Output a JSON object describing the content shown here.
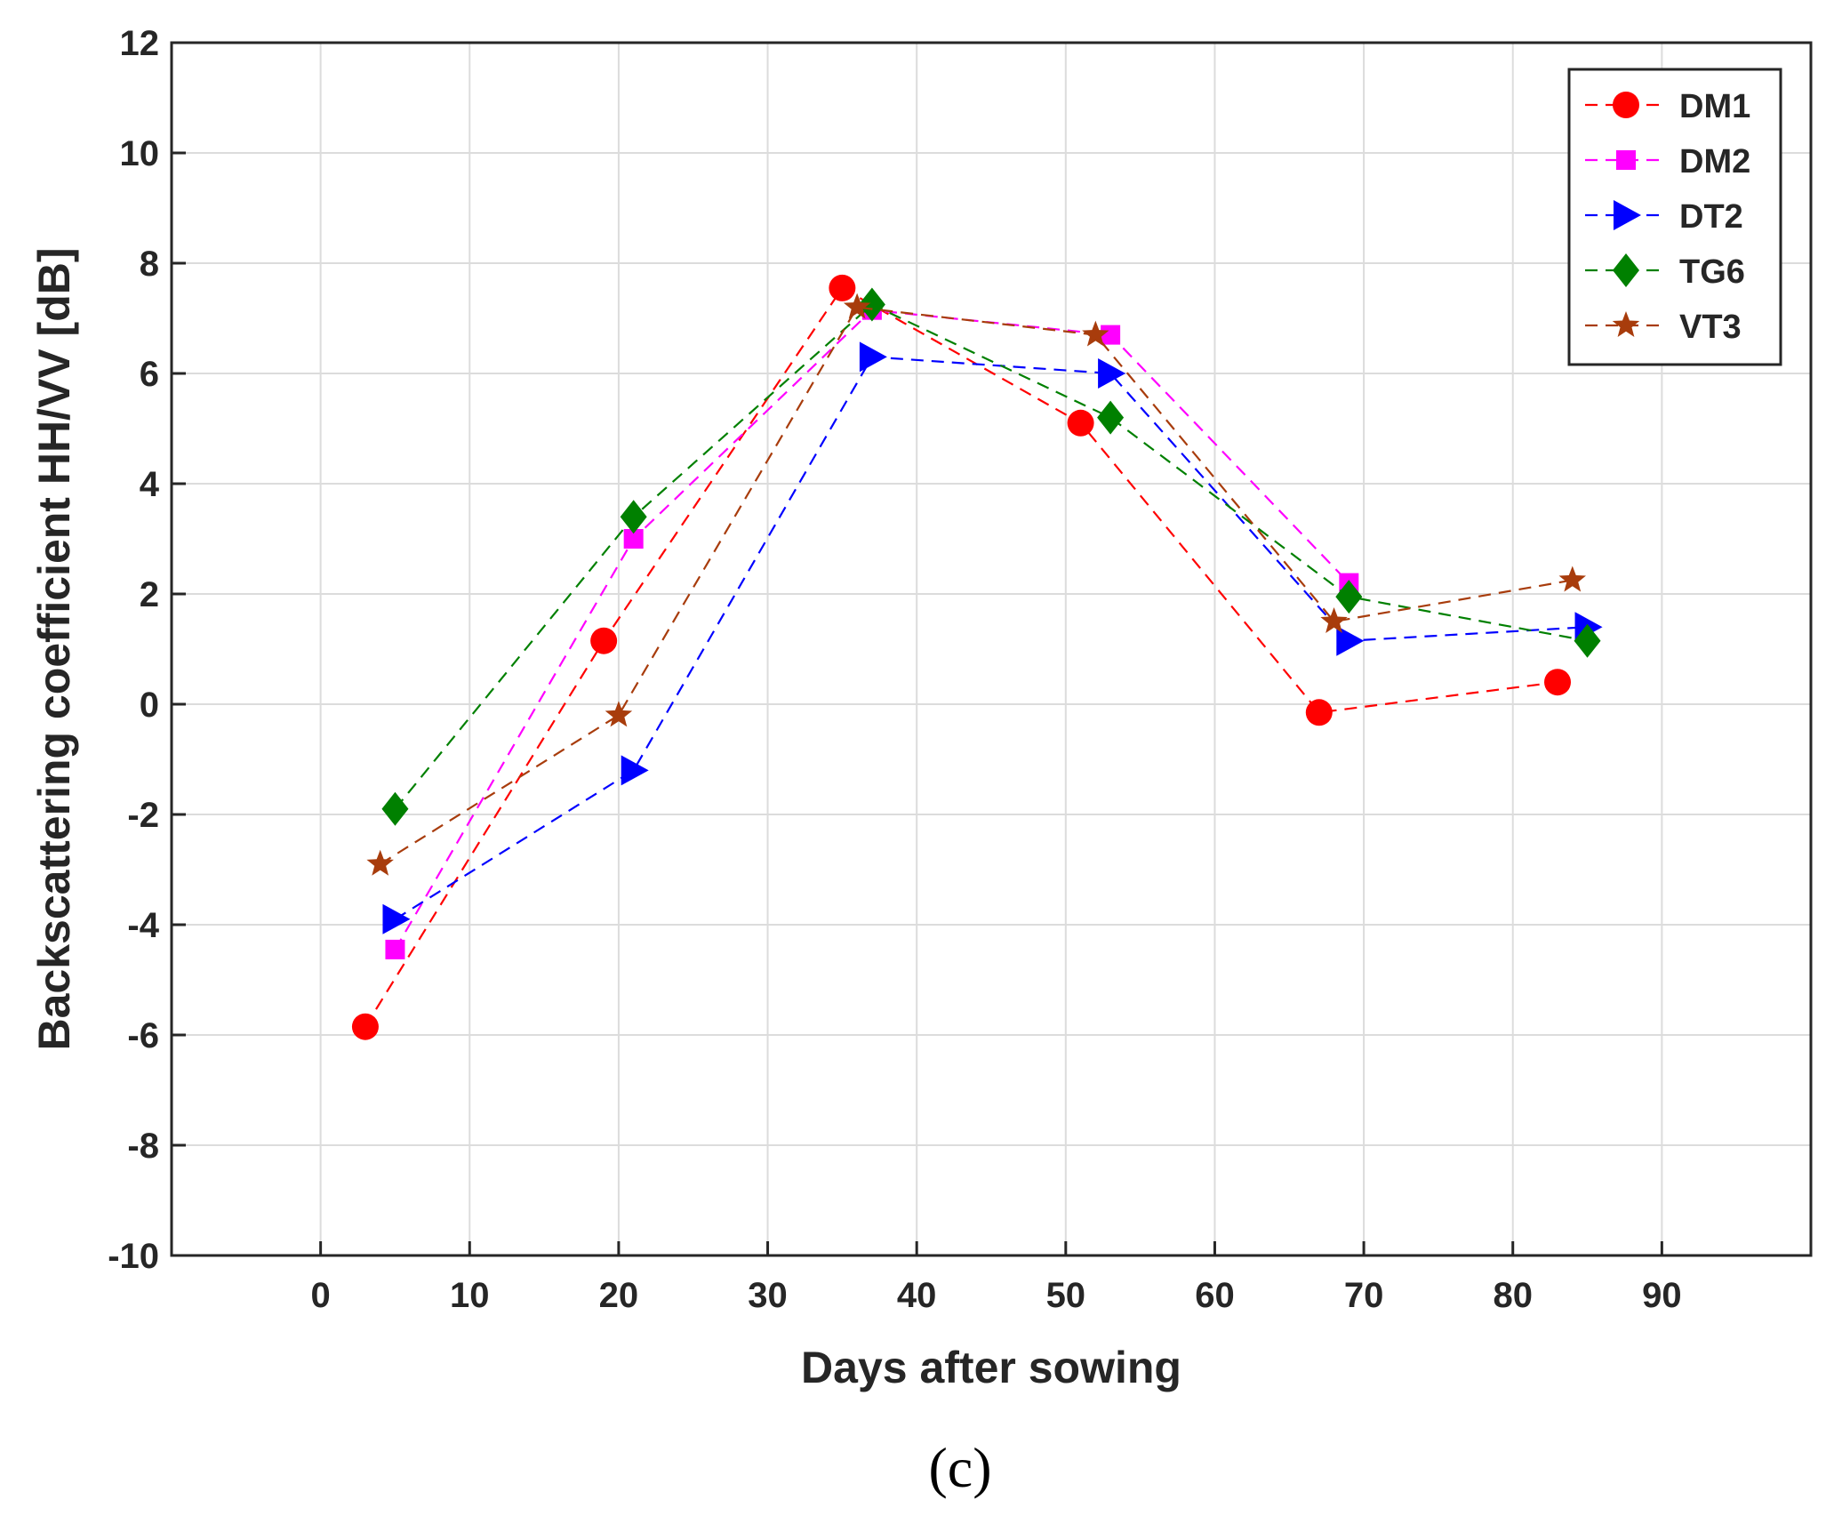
{
  "chart_data": {
    "type": "line",
    "title": "",
    "xlabel": "Days after sowing",
    "ylabel": "Backscattering coefficient HH/VV [dB]",
    "xlim": [
      -10,
      100
    ],
    "ylim": [
      -10,
      12
    ],
    "xticks": [
      0,
      10,
      20,
      30,
      40,
      50,
      60,
      70,
      80,
      90
    ],
    "yticks": [
      -10,
      -8,
      -6,
      -4,
      -2,
      0,
      2,
      4,
      6,
      8,
      10,
      12
    ],
    "grid": true,
    "legend_position": "top-right",
    "panel_label": "(c)",
    "series": [
      {
        "name": "DM1",
        "color": "#ff0000",
        "marker": "circle",
        "x": [
          3,
          19,
          35,
          51,
          67,
          83
        ],
        "y": [
          -5.85,
          1.15,
          7.55,
          5.1,
          -0.15,
          0.4
        ]
      },
      {
        "name": "DM2",
        "color": "#ff00ff",
        "marker": "square",
        "x": [
          5,
          21,
          37,
          53,
          69
        ],
        "y": [
          -4.45,
          3.0,
          7.15,
          6.7,
          2.2
        ]
      },
      {
        "name": "DT2",
        "color": "#0000ff",
        "marker": "triangle-right",
        "x": [
          5,
          21,
          37,
          53,
          69,
          85
        ],
        "y": [
          -3.9,
          -1.2,
          6.3,
          6.0,
          1.15,
          1.4
        ]
      },
      {
        "name": "TG6",
        "color": "#008000",
        "marker": "diamond",
        "x": [
          5,
          21,
          37,
          53,
          69,
          85
        ],
        "y": [
          -1.9,
          3.4,
          7.25,
          5.2,
          1.95,
          1.15
        ]
      },
      {
        "name": "VT3",
        "color": "#a83c0c",
        "marker": "star",
        "x": [
          4,
          20,
          36,
          52,
          68,
          84
        ],
        "y": [
          -2.9,
          -0.2,
          7.2,
          6.7,
          1.5,
          2.25
        ]
      }
    ]
  }
}
